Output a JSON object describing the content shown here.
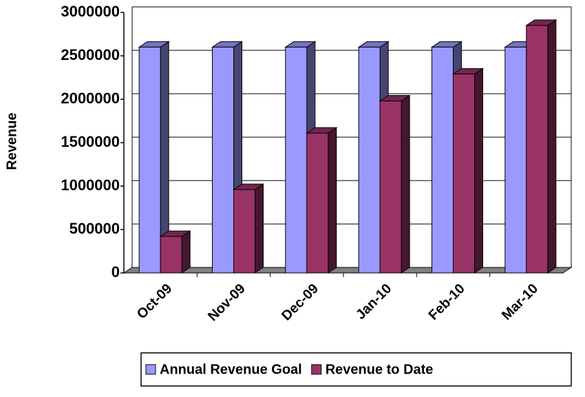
{
  "chart_data": {
    "type": "bar3d",
    "y_label": "Revenue",
    "categories": [
      "Oct-09",
      "Nov-09",
      "Dec-09",
      "Jan-10",
      "Feb-10",
      "Mar-10"
    ],
    "series": [
      {
        "name": "Annual Revenue Goal",
        "color": "#9999ff",
        "values": [
          2600000,
          2600000,
          2600000,
          2600000,
          2600000,
          2600000
        ]
      },
      {
        "name": "Revenue to Date",
        "color": "#993366",
        "values": [
          420000,
          960000,
          1610000,
          1980000,
          2290000,
          2850000
        ]
      }
    ],
    "ylim": [
      0,
      3000000
    ],
    "yticks": [
      0,
      500000,
      1000000,
      1500000,
      2000000,
      2500000,
      3000000
    ],
    "grid": true,
    "legend": "bottom"
  }
}
